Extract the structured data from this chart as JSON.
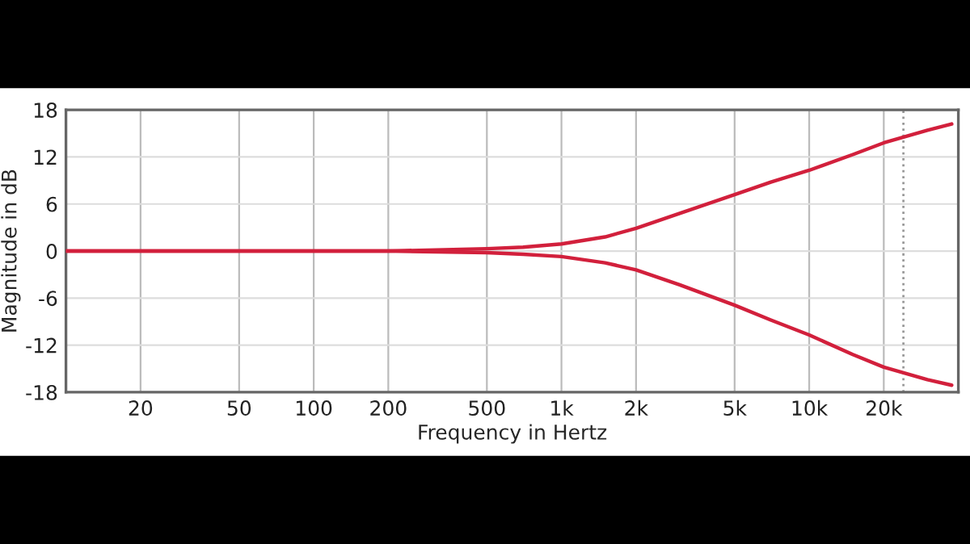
{
  "chart_data": {
    "type": "line",
    "xlabel": "Frequency in Hertz",
    "ylabel": "Magnitude in dB",
    "log": "x",
    "grid": true,
    "legend": false,
    "marker": "none",
    "line_style": "solid",
    "xlim": [
      10,
      40000
    ],
    "xticks": [
      20,
      50,
      100,
      200,
      500,
      {
        "value": 1000,
        "label": "1k"
      },
      {
        "value": 2000,
        "label": "2k"
      },
      {
        "value": 5000,
        "label": "5k"
      },
      {
        "value": 10000,
        "label": "10k"
      },
      {
        "value": 20000,
        "label": "20k"
      }
    ],
    "ylim": [
      -18,
      18
    ],
    "yticks": [
      -18,
      -12,
      -6,
      0,
      6,
      12,
      18
    ],
    "ref_lines": [
      {
        "axis": "x",
        "value": 24000,
        "color": "#999999",
        "line_style": "dotted"
      }
    ],
    "series": [
      {
        "color": "#d2203c",
        "x": [
          10,
          100,
          200,
          500,
          700,
          1000,
          1500,
          2000,
          3000,
          5000,
          7000,
          10000,
          15000,
          20000,
          30000,
          37600
        ],
        "values": [
          0,
          0,
          0,
          0.3,
          0.5,
          0.9,
          1.8,
          2.9,
          4.8,
          7.2,
          8.8,
          10.3,
          12.3,
          13.8,
          15.4,
          16.2
        ]
      },
      {
        "color": "#d2203c",
        "x": [
          10,
          100,
          200,
          500,
          700,
          1000,
          1500,
          2000,
          3000,
          5000,
          7000,
          10000,
          15000,
          20000,
          30000,
          37600
        ],
        "values": [
          0,
          0,
          0,
          -0.2,
          -0.4,
          -0.7,
          -1.5,
          -2.4,
          -4.3,
          -6.9,
          -8.8,
          -10.7,
          -13.2,
          -14.8,
          -16.4,
          -17.1
        ]
      }
    ]
  }
}
